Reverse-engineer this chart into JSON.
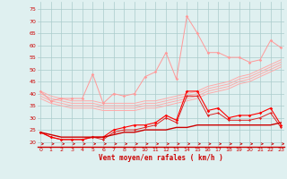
{
  "x": [
    0,
    1,
    2,
    3,
    4,
    5,
    6,
    7,
    8,
    9,
    10,
    11,
    12,
    13,
    14,
    15,
    16,
    17,
    18,
    19,
    20,
    21,
    22,
    23
  ],
  "line_rafales": [
    41,
    37,
    38,
    38,
    38,
    48,
    36,
    40,
    39,
    40,
    47,
    49,
    57,
    46,
    72,
    65,
    57,
    57,
    55,
    55,
    53,
    54,
    62,
    59
  ],
  "line_moyen": [
    24,
    22,
    21,
    21,
    21,
    22,
    22,
    25,
    26,
    27,
    27,
    28,
    31,
    29,
    41,
    41,
    33,
    34,
    30,
    31,
    31,
    32,
    34,
    27
  ],
  "line_moyen2": [
    24,
    22,
    21,
    21,
    21,
    22,
    21,
    24,
    25,
    25,
    26,
    27,
    30,
    28,
    39,
    39,
    31,
    32,
    29,
    29,
    29,
    30,
    32,
    26
  ],
  "trend1": [
    41,
    39,
    38,
    37,
    37,
    37,
    36,
    36,
    36,
    36,
    37,
    37,
    38,
    39,
    40,
    41,
    43,
    44,
    45,
    47,
    48,
    50,
    52,
    54
  ],
  "trend2": [
    40,
    38,
    37,
    36,
    36,
    36,
    35,
    35,
    35,
    35,
    36,
    36,
    37,
    38,
    39,
    40,
    42,
    43,
    44,
    46,
    47,
    49,
    51,
    53
  ],
  "trend3": [
    39,
    37,
    36,
    35,
    35,
    35,
    34,
    34,
    34,
    34,
    35,
    35,
    36,
    37,
    38,
    39,
    41,
    42,
    43,
    45,
    46,
    48,
    50,
    52
  ],
  "trend4": [
    38,
    36,
    35,
    34,
    34,
    34,
    33,
    33,
    33,
    33,
    34,
    34,
    35,
    36,
    37,
    38,
    40,
    41,
    42,
    44,
    45,
    47,
    49,
    51
  ],
  "flat_line": [
    24,
    23,
    22,
    22,
    22,
    22,
    22,
    23,
    24,
    24,
    25,
    25,
    25,
    26,
    26,
    27,
    27,
    27,
    27,
    27,
    27,
    27,
    27,
    28
  ],
  "bg_color": "#dff0f0",
  "grid_color": "#aacccc",
  "line_rafales_color": "#ff9999",
  "line_moyen_color": "#ff0000",
  "trend_color": "#ffaaaa",
  "flat_color": "#cc0000",
  "xlabel": "Vent moyen/en rafales ( km/h )",
  "ylim": [
    18,
    78
  ],
  "xlim": [
    -0.3,
    23.3
  ],
  "yticks": [
    20,
    25,
    30,
    35,
    40,
    45,
    50,
    55,
    60,
    65,
    70,
    75
  ],
  "xticks": [
    0,
    1,
    2,
    3,
    4,
    5,
    6,
    7,
    8,
    9,
    10,
    11,
    12,
    13,
    14,
    15,
    16,
    17,
    18,
    19,
    20,
    21,
    22,
    23
  ]
}
